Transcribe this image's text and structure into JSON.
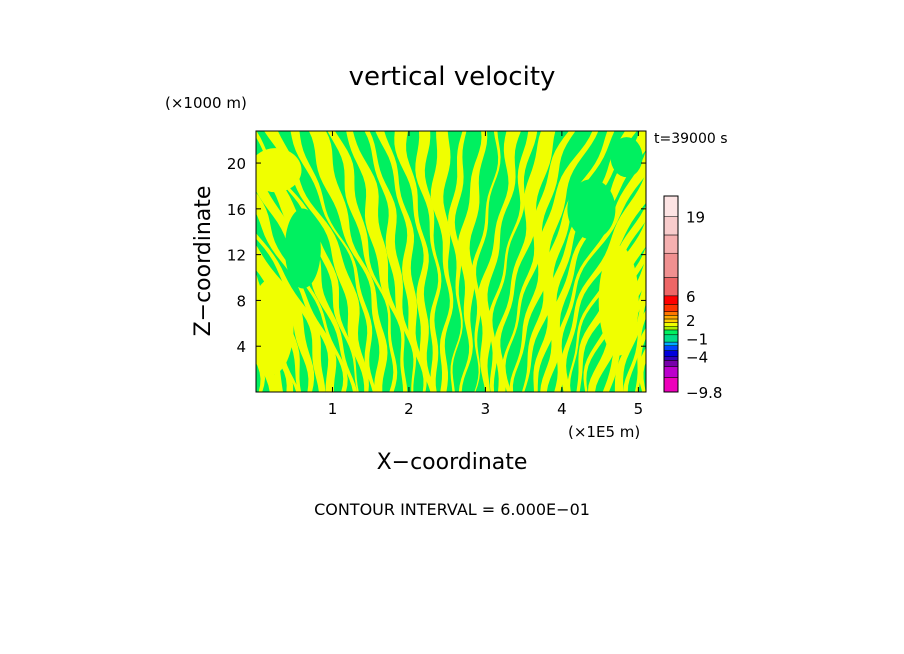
{
  "chart_data": {
    "type": "heatmap",
    "title": "vertical velocity",
    "time_label": "t=39000 s",
    "xlabel": "X−coordinate",
    "ylabel": "Z−coordinate",
    "x_unit": "(×1E5 m)",
    "y_unit": "(×1000 m)",
    "xlim": [
      0,
      5.1
    ],
    "ylim": [
      0,
      22.8
    ],
    "x_ticks": [
      {
        "value": 1,
        "label": "1"
      },
      {
        "value": 2,
        "label": "2"
      },
      {
        "value": 3,
        "label": "3"
      },
      {
        "value": 4,
        "label": "4"
      },
      {
        "value": 5,
        "label": "5"
      }
    ],
    "y_ticks": [
      {
        "value": 4,
        "label": "4"
      },
      {
        "value": 8,
        "label": "8"
      },
      {
        "value": 12,
        "label": "12"
      },
      {
        "value": 16,
        "label": "16"
      },
      {
        "value": 20,
        "label": "20"
      }
    ],
    "footer": "CONTOUR INTERVAL = 6.000E−01",
    "field_colors": {
      "background_band": "#00f060",
      "alternate_band": "#f0ff00"
    },
    "colorbar": {
      "min": -9.8,
      "max": 22.4,
      "tick_labels": [
        {
          "value": 19,
          "label": "19"
        },
        {
          "value": 6,
          "label": "6"
        },
        {
          "value": 2,
          "label": "2"
        },
        {
          "value": -1,
          "label": "−1"
        },
        {
          "value": -4,
          "label": "−4"
        },
        {
          "value": -9.8,
          "label": "−9.8"
        }
      ],
      "segments": [
        {
          "from": -9.8,
          "to": -7.4,
          "color": "#ee00bb"
        },
        {
          "from": -7.4,
          "to": -5.6,
          "color": "#bb00cc"
        },
        {
          "from": -5.6,
          "to": -4.6,
          "color": "#7700aa"
        },
        {
          "from": -4.6,
          "to": -4.0,
          "color": "#3300bb"
        },
        {
          "from": -4.0,
          "to": -3.0,
          "color": "#0000dd"
        },
        {
          "from": -3.0,
          "to": -2.2,
          "color": "#0044ff"
        },
        {
          "from": -2.2,
          "to": -1.6,
          "color": "#00aaff"
        },
        {
          "from": -1.6,
          "to": -0.4,
          "color": "#00dd88"
        },
        {
          "from": -0.4,
          "to": 0.4,
          "color": "#00f060"
        },
        {
          "from": 0.4,
          "to": 1.0,
          "color": "#aaee00"
        },
        {
          "from": 1.0,
          "to": 1.6,
          "color": "#f0ff00"
        },
        {
          "from": 1.6,
          "to": 2.2,
          "color": "#ffcc00"
        },
        {
          "from": 2.2,
          "to": 2.8,
          "color": "#ffaa00"
        },
        {
          "from": 2.8,
          "to": 3.4,
          "color": "#ff7700"
        },
        {
          "from": 3.4,
          "to": 4.6,
          "color": "#ff3300"
        },
        {
          "from": 4.6,
          "to": 6.0,
          "color": "#ff0000"
        },
        {
          "from": 6.0,
          "to": 9.0,
          "color": "#ee6666"
        },
        {
          "from": 9.0,
          "to": 13.0,
          "color": "#f09090"
        },
        {
          "from": 13.0,
          "to": 16.0,
          "color": "#f5b0b0"
        },
        {
          "from": 16.0,
          "to": 19.0,
          "color": "#f8cccc"
        },
        {
          "from": 19.0,
          "to": 22.4,
          "color": "#fde4e4"
        }
      ]
    }
  }
}
